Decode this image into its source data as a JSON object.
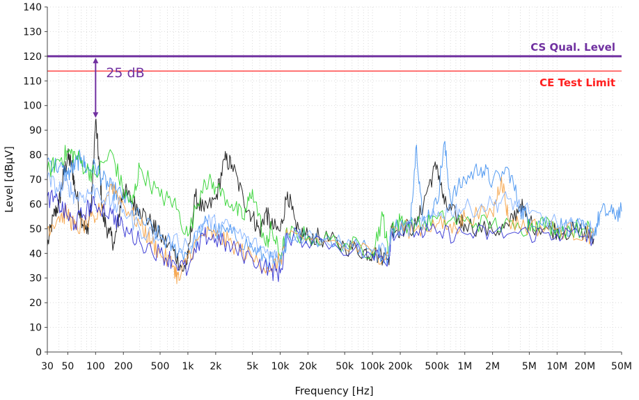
{
  "chart_data": {
    "type": "line",
    "x_scale": "log",
    "xlabel": "Frequency [Hz]",
    "ylabel": "Level [dBµV]",
    "xlim": [
      30,
      50000000
    ],
    "ylim": [
      0,
      140
    ],
    "grid": true,
    "x_ticks": [
      {
        "value": 30,
        "label": "30"
      },
      {
        "value": 50,
        "label": "50"
      },
      {
        "value": 100,
        "label": "100"
      },
      {
        "value": 200,
        "label": "200"
      },
      {
        "value": 500,
        "label": "500"
      },
      {
        "value": 1000,
        "label": "1k"
      },
      {
        "value": 2000,
        "label": "2k"
      },
      {
        "value": 5000,
        "label": "5k"
      },
      {
        "value": 10000,
        "label": "10k"
      },
      {
        "value": 20000,
        "label": "20k"
      },
      {
        "value": 50000,
        "label": "50k"
      },
      {
        "value": 100000,
        "label": "100k"
      },
      {
        "value": 200000,
        "label": "200k"
      },
      {
        "value": 500000,
        "label": "500k"
      },
      {
        "value": 1000000,
        "label": "1M"
      },
      {
        "value": 2000000,
        "label": "2M"
      },
      {
        "value": 5000000,
        "label": "5M"
      },
      {
        "value": 10000000,
        "label": "10M"
      },
      {
        "value": 20000000,
        "label": "20M"
      },
      {
        "value": 50000000,
        "label": "50M"
      }
    ],
    "y_ticks": [
      0,
      10,
      20,
      30,
      40,
      50,
      60,
      70,
      80,
      90,
      100,
      110,
      120,
      130,
      140
    ],
    "reference_lines": [
      {
        "label": "CS Qual. Level",
        "y": 120,
        "color": "#7030a0"
      },
      {
        "label": "CE Test Limit",
        "y": 114,
        "color": "#ff2020"
      }
    ],
    "annotation": {
      "text": "25 dB",
      "x": 100,
      "y_from": 95,
      "y_to": 120,
      "color": "#7030a0"
    },
    "series": [
      {
        "color": "#111111",
        "points": [
          [
            30,
            43
          ],
          [
            35,
            55
          ],
          [
            40,
            60
          ],
          [
            45,
            72
          ],
          [
            50,
            79
          ],
          [
            55,
            76
          ],
          [
            60,
            66
          ],
          [
            70,
            55
          ],
          [
            80,
            48
          ],
          [
            90,
            60
          ],
          [
            100,
            94
          ],
          [
            110,
            75
          ],
          [
            120,
            55
          ],
          [
            140,
            48
          ],
          [
            160,
            44
          ],
          [
            180,
            56
          ],
          [
            200,
            66
          ],
          [
            250,
            61
          ],
          [
            300,
            58
          ],
          [
            400,
            52
          ],
          [
            500,
            47
          ],
          [
            700,
            41
          ],
          [
            900,
            33
          ],
          [
            1000,
            38
          ],
          [
            1200,
            63
          ],
          [
            1500,
            57
          ],
          [
            2000,
            62
          ],
          [
            2500,
            78
          ],
          [
            3000,
            76
          ],
          [
            4000,
            62
          ],
          [
            5000,
            55
          ],
          [
            6000,
            49
          ],
          [
            7000,
            57
          ],
          [
            8000,
            51
          ],
          [
            10000,
            49
          ],
          [
            12000,
            65
          ],
          [
            15000,
            49
          ],
          [
            20000,
            47
          ],
          [
            30000,
            46
          ],
          [
            50000,
            43
          ],
          [
            80000,
            41
          ],
          [
            100000,
            40
          ],
          [
            150000,
            38
          ],
          [
            160000,
            50
          ],
          [
            200000,
            50
          ],
          [
            300000,
            51
          ],
          [
            400000,
            67
          ],
          [
            500000,
            76
          ],
          [
            600000,
            60
          ],
          [
            800000,
            55
          ],
          [
            1000000,
            52
          ],
          [
            2000000,
            49
          ],
          [
            3000000,
            51
          ],
          [
            4000000,
            60
          ],
          [
            5000000,
            52
          ],
          [
            8000000,
            50
          ],
          [
            12000000,
            49
          ],
          [
            20000000,
            49
          ],
          [
            25000000,
            46
          ]
        ]
      },
      {
        "color": "#3f8ff0",
        "points": [
          [
            30,
            78
          ],
          [
            40,
            75
          ],
          [
            50,
            72
          ],
          [
            60,
            76
          ],
          [
            70,
            79
          ],
          [
            80,
            74
          ],
          [
            100,
            75
          ],
          [
            120,
            70
          ],
          [
            150,
            66
          ],
          [
            200,
            63
          ],
          [
            300,
            54
          ],
          [
            500,
            47
          ],
          [
            700,
            42
          ],
          [
            1000,
            40
          ],
          [
            1500,
            52
          ],
          [
            2000,
            49
          ],
          [
            3000,
            48
          ],
          [
            5000,
            42
          ],
          [
            7000,
            38
          ],
          [
            10000,
            35
          ],
          [
            12000,
            48
          ],
          [
            20000,
            47
          ],
          [
            30000,
            46
          ],
          [
            50000,
            44
          ],
          [
            100000,
            41
          ],
          [
            150000,
            39
          ],
          [
            160000,
            50
          ],
          [
            200000,
            51
          ],
          [
            250000,
            50
          ],
          [
            300000,
            84
          ],
          [
            350000,
            53
          ],
          [
            500000,
            60
          ],
          [
            600000,
            85
          ],
          [
            700000,
            62
          ],
          [
            1000000,
            70
          ],
          [
            1500000,
            75
          ],
          [
            2000000,
            69
          ],
          [
            3000000,
            74
          ],
          [
            4000000,
            58
          ],
          [
            5000000,
            54
          ],
          [
            8000000,
            52
          ],
          [
            12000000,
            51
          ],
          [
            18000000,
            50
          ],
          [
            25000000,
            48
          ],
          [
            30000000,
            57
          ],
          [
            40000000,
            56
          ],
          [
            50000000,
            57
          ]
        ]
      },
      {
        "color": "#2ad12a",
        "points": [
          [
            30,
            73
          ],
          [
            40,
            78
          ],
          [
            50,
            81
          ],
          [
            60,
            80
          ],
          [
            80,
            74
          ],
          [
            100,
            72
          ],
          [
            150,
            81
          ],
          [
            200,
            65
          ],
          [
            250,
            60
          ],
          [
            300,
            75
          ],
          [
            500,
            63
          ],
          [
            700,
            61
          ],
          [
            1000,
            47
          ],
          [
            1500,
            70
          ],
          [
            2000,
            67
          ],
          [
            3000,
            60
          ],
          [
            4000,
            54
          ],
          [
            5000,
            66
          ],
          [
            7000,
            43
          ],
          [
            8000,
            50
          ],
          [
            10000,
            39
          ],
          [
            12000,
            48
          ],
          [
            20000,
            47
          ],
          [
            50000,
            44
          ],
          [
            100000,
            41
          ],
          [
            130000,
            55
          ],
          [
            150000,
            39
          ],
          [
            160000,
            51
          ],
          [
            200000,
            53
          ],
          [
            300000,
            51
          ],
          [
            500000,
            54
          ],
          [
            1000000,
            53
          ],
          [
            2000000,
            52
          ],
          [
            4000000,
            50
          ],
          [
            6000000,
            53
          ],
          [
            10000000,
            50
          ],
          [
            20000000,
            50
          ],
          [
            25000000,
            49
          ]
        ]
      },
      {
        "color": "#f5a040",
        "points": [
          [
            30,
            50
          ],
          [
            40,
            55
          ],
          [
            50,
            56
          ],
          [
            60,
            50
          ],
          [
            80,
            52
          ],
          [
            100,
            54
          ],
          [
            150,
            68
          ],
          [
            200,
            60
          ],
          [
            300,
            52
          ],
          [
            400,
            45
          ],
          [
            500,
            40
          ],
          [
            700,
            35
          ],
          [
            800,
            29
          ],
          [
            1000,
            39
          ],
          [
            1500,
            48
          ],
          [
            2000,
            47
          ],
          [
            3000,
            44
          ],
          [
            5000,
            38
          ],
          [
            8000,
            34
          ],
          [
            10000,
            37
          ],
          [
            12000,
            47
          ],
          [
            30000,
            45
          ],
          [
            100000,
            40
          ],
          [
            150000,
            39
          ],
          [
            160000,
            50
          ],
          [
            300000,
            50
          ],
          [
            500000,
            52
          ],
          [
            800000,
            50
          ],
          [
            1000000,
            55
          ],
          [
            2000000,
            56
          ],
          [
            2500000,
            71
          ],
          [
            3000000,
            53
          ],
          [
            5000000,
            51
          ],
          [
            10000000,
            50
          ],
          [
            20000000,
            48
          ],
          [
            25000000,
            47
          ]
        ]
      },
      {
        "color": "#2b2bd1",
        "points": [
          [
            30,
            63
          ],
          [
            40,
            60
          ],
          [
            50,
            55
          ],
          [
            60,
            52
          ],
          [
            80,
            58
          ],
          [
            100,
            60
          ],
          [
            150,
            56
          ],
          [
            200,
            50
          ],
          [
            300,
            45
          ],
          [
            500,
            40
          ],
          [
            700,
            37
          ],
          [
            1000,
            33
          ],
          [
            1500,
            47
          ],
          [
            2000,
            46
          ],
          [
            3000,
            42
          ],
          [
            5000,
            38
          ],
          [
            8000,
            33
          ],
          [
            10000,
            32
          ],
          [
            12000,
            47
          ],
          [
            30000,
            45
          ],
          [
            100000,
            39
          ],
          [
            150000,
            38
          ],
          [
            160000,
            49
          ],
          [
            300000,
            49
          ],
          [
            500000,
            48
          ],
          [
            1000000,
            48
          ],
          [
            2000000,
            48
          ],
          [
            5000000,
            48
          ],
          [
            10000000,
            48
          ],
          [
            20000000,
            47
          ],
          [
            25000000,
            46
          ]
        ]
      },
      {
        "color": "#7fb0ff",
        "points": [
          [
            30,
            70
          ],
          [
            40,
            66
          ],
          [
            50,
            68
          ],
          [
            60,
            63
          ],
          [
            80,
            64
          ],
          [
            100,
            66
          ],
          [
            150,
            60
          ],
          [
            200,
            58
          ],
          [
            300,
            50
          ],
          [
            500,
            46
          ],
          [
            1000,
            43
          ],
          [
            1500,
            53
          ],
          [
            2000,
            52
          ],
          [
            3000,
            50
          ],
          [
            5000,
            44
          ],
          [
            8000,
            40
          ],
          [
            10000,
            38
          ],
          [
            12000,
            48
          ],
          [
            30000,
            46
          ],
          [
            100000,
            41
          ],
          [
            150000,
            40
          ],
          [
            160000,
            50
          ],
          [
            300000,
            51
          ],
          [
            500000,
            55
          ],
          [
            700000,
            58
          ],
          [
            1000000,
            58
          ],
          [
            2000000,
            60
          ],
          [
            3000000,
            62
          ],
          [
            5000000,
            56
          ],
          [
            10000000,
            52
          ],
          [
            20000000,
            50
          ],
          [
            25000000,
            49
          ]
        ]
      }
    ]
  }
}
